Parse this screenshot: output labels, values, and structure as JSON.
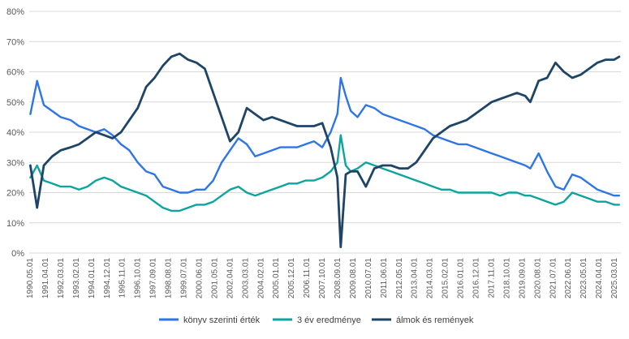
{
  "chart_data": {
    "type": "line",
    "title": "",
    "xlabel": "",
    "ylabel": "",
    "ylim": [
      0,
      80
    ],
    "y_tick_labels": [
      "0%",
      "10%",
      "20%",
      "30%",
      "40%",
      "50%",
      "60%",
      "70%",
      "80%"
    ],
    "x_tick_labels": [
      "1990.05.01",
      "1991.04.01",
      "1992.03.01",
      "1993.02.01",
      "1994.01.01",
      "1994.12.01",
      "1995.11.01",
      "1996.10.01",
      "1997.09.01",
      "1998.08.01",
      "1999.07.01",
      "2000.06.01",
      "2001.05.01",
      "2002.04.01",
      "2003.03.01",
      "2004.02.01",
      "2005.01.01",
      "2005.12.01",
      "2006.11.01",
      "2007.10.01",
      "2008.09.01",
      "2009.08.01",
      "2010.07.01",
      "2011.06.01",
      "2012.05.01",
      "2013.04.01",
      "2014.03.01",
      "2015.02.01",
      "2016.01.01",
      "2016.12.01",
      "2017.11.01",
      "2018.10.01",
      "2019.09.01",
      "2020.08.01",
      "2021.07.01",
      "2022.06.01",
      "2023.05.01",
      "2024.04.01",
      "2025.03.01"
    ],
    "gridlines": true,
    "legend_position": "bottom",
    "x": [
      1990.4,
      1990.8,
      1991.2,
      1991.7,
      1992.2,
      1992.8,
      1993.3,
      1993.8,
      1994.3,
      1994.8,
      1995.3,
      1995.8,
      1996.3,
      1996.8,
      1997.3,
      1997.8,
      1998.3,
      1998.8,
      1999.3,
      1999.8,
      2000.3,
      2000.8,
      2001.3,
      2001.8,
      2002.3,
      2002.8,
      2003.3,
      2003.8,
      2004.3,
      2004.8,
      2005.3,
      2005.8,
      2006.3,
      2006.8,
      2007.3,
      2007.8,
      2008.3,
      2008.7,
      2008.9,
      2009.2,
      2009.5,
      2009.9,
      2010.4,
      2010.9,
      2011.4,
      2011.9,
      2012.4,
      2012.9,
      2013.4,
      2013.9,
      2014.4,
      2014.9,
      2015.4,
      2015.9,
      2016.4,
      2016.9,
      2017.4,
      2017.9,
      2018.4,
      2018.9,
      2019.4,
      2019.9,
      2020.2,
      2020.7,
      2021.2,
      2021.7,
      2022.2,
      2022.7,
      2023.2,
      2023.7,
      2024.2,
      2024.7,
      2025.2,
      2025.5
    ],
    "series": [
      {
        "name": "könyv szerinti érték",
        "color": "#2E75E6",
        "values": [
          46,
          57,
          49,
          47,
          45,
          44,
          42,
          41,
          40,
          41,
          39,
          36,
          34,
          30,
          27,
          26,
          22,
          21,
          20,
          20,
          21,
          21,
          24,
          30,
          34,
          38,
          36,
          32,
          33,
          34,
          35,
          35,
          35,
          36,
          37,
          35,
          40,
          46,
          58,
          52,
          47,
          45,
          49,
          48,
          46,
          45,
          44,
          43,
          42,
          41,
          39,
          38,
          37,
          36,
          36,
          35,
          34,
          33,
          32,
          31,
          30,
          29,
          28,
          33,
          27,
          22,
          21,
          26,
          25,
          23,
          21,
          20,
          19,
          19
        ],
        "stroke_width": 2.4
      },
      {
        "name": "3 év eredménye",
        "color": "#0FA3A0",
        "values": [
          25,
          29,
          24,
          23,
          22,
          22,
          21,
          22,
          24,
          25,
          24,
          22,
          21,
          20,
          19,
          17,
          15,
          14,
          14,
          15,
          16,
          16,
          17,
          19,
          21,
          22,
          20,
          19,
          20,
          21,
          22,
          23,
          23,
          24,
          24,
          25,
          27,
          30,
          39,
          29,
          27,
          28,
          30,
          29,
          28,
          27,
          26,
          25,
          24,
          23,
          22,
          21,
          21,
          20,
          20,
          20,
          20,
          20,
          19,
          20,
          20,
          19,
          19,
          18,
          17,
          16,
          17,
          20,
          19,
          18,
          17,
          17,
          16,
          16
        ],
        "stroke_width": 2.4
      },
      {
        "name": "álmok és remények",
        "color": "#1E4466",
        "values": [
          29,
          15,
          29,
          32,
          34,
          35,
          36,
          38,
          40,
          39,
          38,
          40,
          44,
          48,
          55,
          58,
          62,
          65,
          66,
          64,
          63,
          61,
          53,
          45,
          37,
          40,
          48,
          46,
          44,
          45,
          44,
          43,
          42,
          42,
          42,
          43,
          35,
          25,
          2,
          26,
          27,
          27,
          22,
          28,
          29,
          29,
          28,
          28,
          30,
          34,
          38,
          40,
          42,
          43,
          44,
          46,
          48,
          50,
          51,
          52,
          53,
          52,
          50,
          57,
          58,
          63,
          60,
          58,
          59,
          61,
          63,
          64,
          64,
          65
        ],
        "stroke_width": 2.8
      }
    ]
  }
}
